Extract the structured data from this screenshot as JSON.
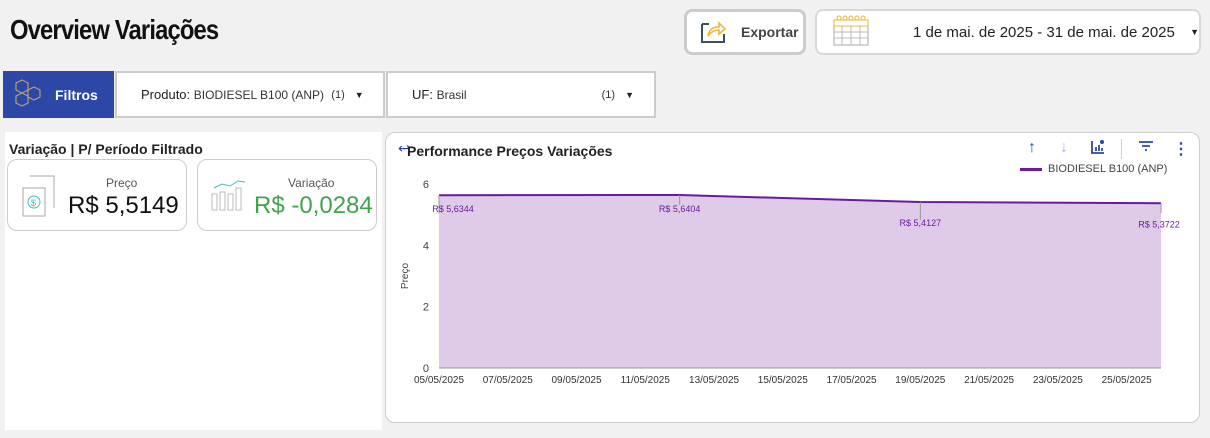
{
  "header": {
    "title": "Overview Variações",
    "export_label": "Exportar",
    "date_range": "1 de mai. de 2025 - 31 de mai. de 2025"
  },
  "filters": {
    "label": "Filtros",
    "produto_key": "Produto:",
    "produto_value": "BIODIESEL B100 (ANP)",
    "produto_count": "(1)",
    "uf_key": "UF:",
    "uf_value": "Brasil",
    "uf_count": "(1)"
  },
  "kpis": {
    "section_title": "Variação | P/ Período Filtrado",
    "preco_label": "Preço",
    "preco_value": "R$ 5,5149",
    "variacao_label": "Variação",
    "variacao_value": "R$ -0,0284",
    "variacao_color": "#3fa34d"
  },
  "chart_data": {
    "type": "area",
    "title": "Performance Preços Variações",
    "ylabel": "Preço",
    "xlabel": "",
    "ylim": [
      0,
      6
    ],
    "yticks": [
      0,
      2,
      4,
      6
    ],
    "xticks": [
      "05/05/2025",
      "07/05/2025",
      "09/05/2025",
      "11/05/2025",
      "13/05/2025",
      "15/05/2025",
      "17/05/2025",
      "19/05/2025",
      "21/05/2025",
      "23/05/2025",
      "25/05/2025"
    ],
    "x_day_range": [
      5,
      26
    ],
    "series": [
      {
        "name": "BIODIESEL B100 (ANP)",
        "color": "#6a1b9a",
        "fill": "#dfcbe8",
        "x": [
          "05/05/2025",
          "12/05/2025",
          "19/05/2025",
          "26/05/2025"
        ],
        "x_day": [
          5,
          12,
          19,
          26
        ],
        "values": [
          5.6344,
          5.6404,
          5.4127,
          5.3722
        ],
        "labels": [
          "R$ 5,6344",
          "R$ 5,6404",
          "R$ 5,4127",
          "R$ 5,3722"
        ]
      }
    ],
    "legend": "top-right"
  }
}
